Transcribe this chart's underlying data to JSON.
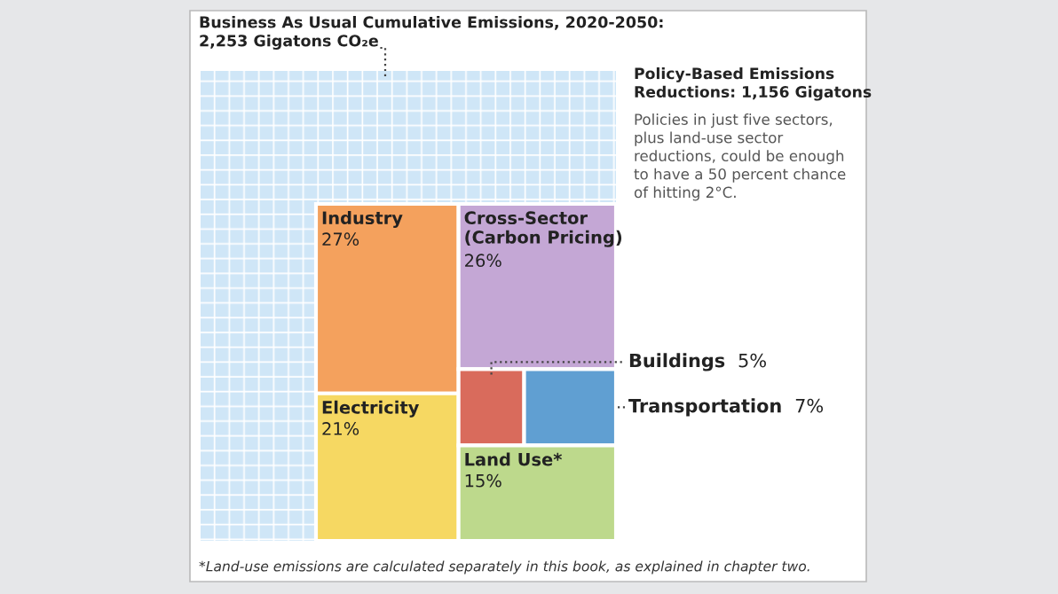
{
  "chart_data": {
    "type": "other",
    "title": "Business As Usual Cumulative Emissions, 2020-2050:\n2,253 Gigatons CO₂e",
    "subtitle": "Policy-Based Emissions\nReductions: 1,156 Gigatons",
    "categories": [
      "Industry",
      "Electricity",
      "Cross-Sector\n(Carbon Pricing)",
      "Buildings",
      "Transportation",
      "Land Use*"
    ],
    "values": [
      27,
      21,
      26,
      5,
      7,
      15
    ],
    "value_labels": [
      "27%",
      "21%",
      "26%",
      "5%",
      "7%",
      "15%"
    ],
    "colors": [
      "#f4a15d",
      "#f6d862",
      "#c4a7d5",
      "#d96b5c",
      "#609fd2",
      "#bdd98c"
    ],
    "annotations": [
      "Policies in just five sectors,\nplus land-use sector\nreductions, could be enough\nto have a 50 percent chance\nof hitting 2°C.",
      "*Land-use emissions are calculated separately in this book, as explained in chapter two."
    ]
  }
}
